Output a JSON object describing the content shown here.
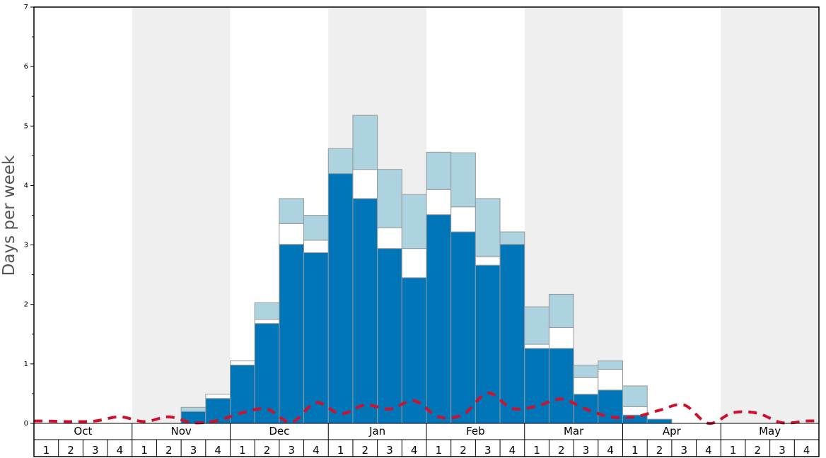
{
  "chart_data": {
    "type": "bar",
    "ylabel": "Days per week",
    "xlabel": "",
    "ylim": [
      0,
      7
    ],
    "y_ticks": [
      "0",
      "1",
      "2",
      "3",
      "4",
      "5",
      "6",
      "7"
    ],
    "months": [
      "Oct",
      "Nov",
      "Dec",
      "Jan",
      "Feb",
      "Mar",
      "Apr",
      "May"
    ],
    "week_labels": [
      "1",
      "2",
      "3",
      "4"
    ],
    "shaded_months": [
      "Nov",
      "Jan",
      "Mar",
      "May"
    ],
    "stacked": true,
    "colors": {
      "dark": "#0075b8",
      "middle": "#ffffff",
      "light": "#add3e0",
      "line": "#d0102c",
      "shade": "#efefef",
      "bar_border": "#999999"
    },
    "series": [
      {
        "values": [
          0,
          0,
          0,
          0,
          0,
          0,
          0.2,
          0.42,
          0.98,
          1.68,
          3.01,
          2.87,
          4.2,
          3.78,
          2.94,
          2.45,
          3.51,
          3.22,
          2.66,
          3.01,
          1.26,
          1.26,
          0.49,
          0.56,
          0.14,
          0.07,
          0,
          0,
          0,
          0,
          0,
          0
        ]
      },
      {
        "values": [
          0,
          0,
          0,
          0,
          0,
          0,
          0,
          0.07,
          0.07,
          0.07,
          0.35,
          0.21,
          0,
          0.49,
          0.35,
          0.49,
          0.42,
          0.42,
          0.14,
          0,
          0.07,
          0.35,
          0.28,
          0.35,
          0.14,
          0,
          0,
          0,
          0,
          0,
          0,
          0
        ]
      },
      {
        "values": [
          0,
          0,
          0,
          0,
          0,
          0,
          0.07,
          0,
          0,
          0.28,
          0.42,
          0.42,
          0.42,
          0.91,
          0.98,
          0.91,
          0.63,
          0.91,
          0.98,
          0.21,
          0.63,
          0.56,
          0.21,
          0.14,
          0.35,
          0,
          0,
          0,
          0,
          0,
          0,
          0
        ]
      },
      {
        "type": "line",
        "values": [
          0.04,
          0.03,
          0.04,
          0.11,
          0.03,
          0.11,
          0.01,
          0.05,
          0.18,
          0.24,
          0.02,
          0.35,
          0.16,
          0.31,
          0.24,
          0.38,
          0.11,
          0.15,
          0.51,
          0.25,
          0.29,
          0.41,
          0.24,
          0.11,
          0.11,
          0.22,
          0.31,
          0.0,
          0.18,
          0.17,
          0.01,
          0.04
        ]
      }
    ]
  }
}
